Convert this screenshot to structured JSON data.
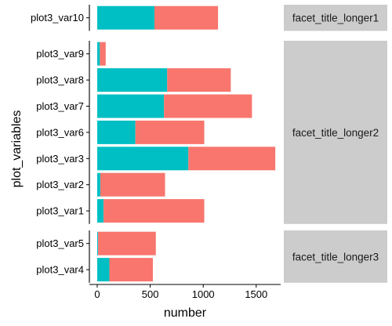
{
  "chart_data": {
    "type": "bar",
    "stacked": true,
    "orientation": "horizontal",
    "xlabel": "number",
    "ylabel": "plot_variables",
    "xlim": [
      -80,
      1720
    ],
    "xticks": [
      0,
      500,
      1000,
      1500
    ],
    "grid": false,
    "colors": {
      "segment_a": "#F8766D",
      "segment_b": "#00BFC4",
      "strip": "#CCCCCC"
    },
    "panels": [
      {
        "facet": "facet_title_longer1",
        "bars": [
          {
            "category": "plot3_var10",
            "segment_b": 540,
            "segment_a": 600
          }
        ]
      },
      {
        "facet": "facet_title_longer2",
        "bars": [
          {
            "category": "plot3_var9",
            "segment_b": 25,
            "segment_a": 55
          },
          {
            "category": "plot3_var8",
            "segment_b": 660,
            "segment_a": 600
          },
          {
            "category": "plot3_var7",
            "segment_b": 630,
            "segment_a": 830
          },
          {
            "category": "plot3_var6",
            "segment_b": 360,
            "segment_a": 650
          },
          {
            "category": "plot3_var3",
            "segment_b": 860,
            "segment_a": 820
          },
          {
            "category": "plot3_var2",
            "segment_b": 30,
            "segment_a": 610
          },
          {
            "category": "plot3_var1",
            "segment_b": 60,
            "segment_a": 950
          }
        ]
      },
      {
        "facet": "facet_title_longer3",
        "bars": [
          {
            "category": "plot3_var5",
            "segment_b": 8,
            "segment_a": 545
          },
          {
            "category": "plot3_var4",
            "segment_b": 115,
            "segment_a": 410
          }
        ]
      }
    ]
  }
}
